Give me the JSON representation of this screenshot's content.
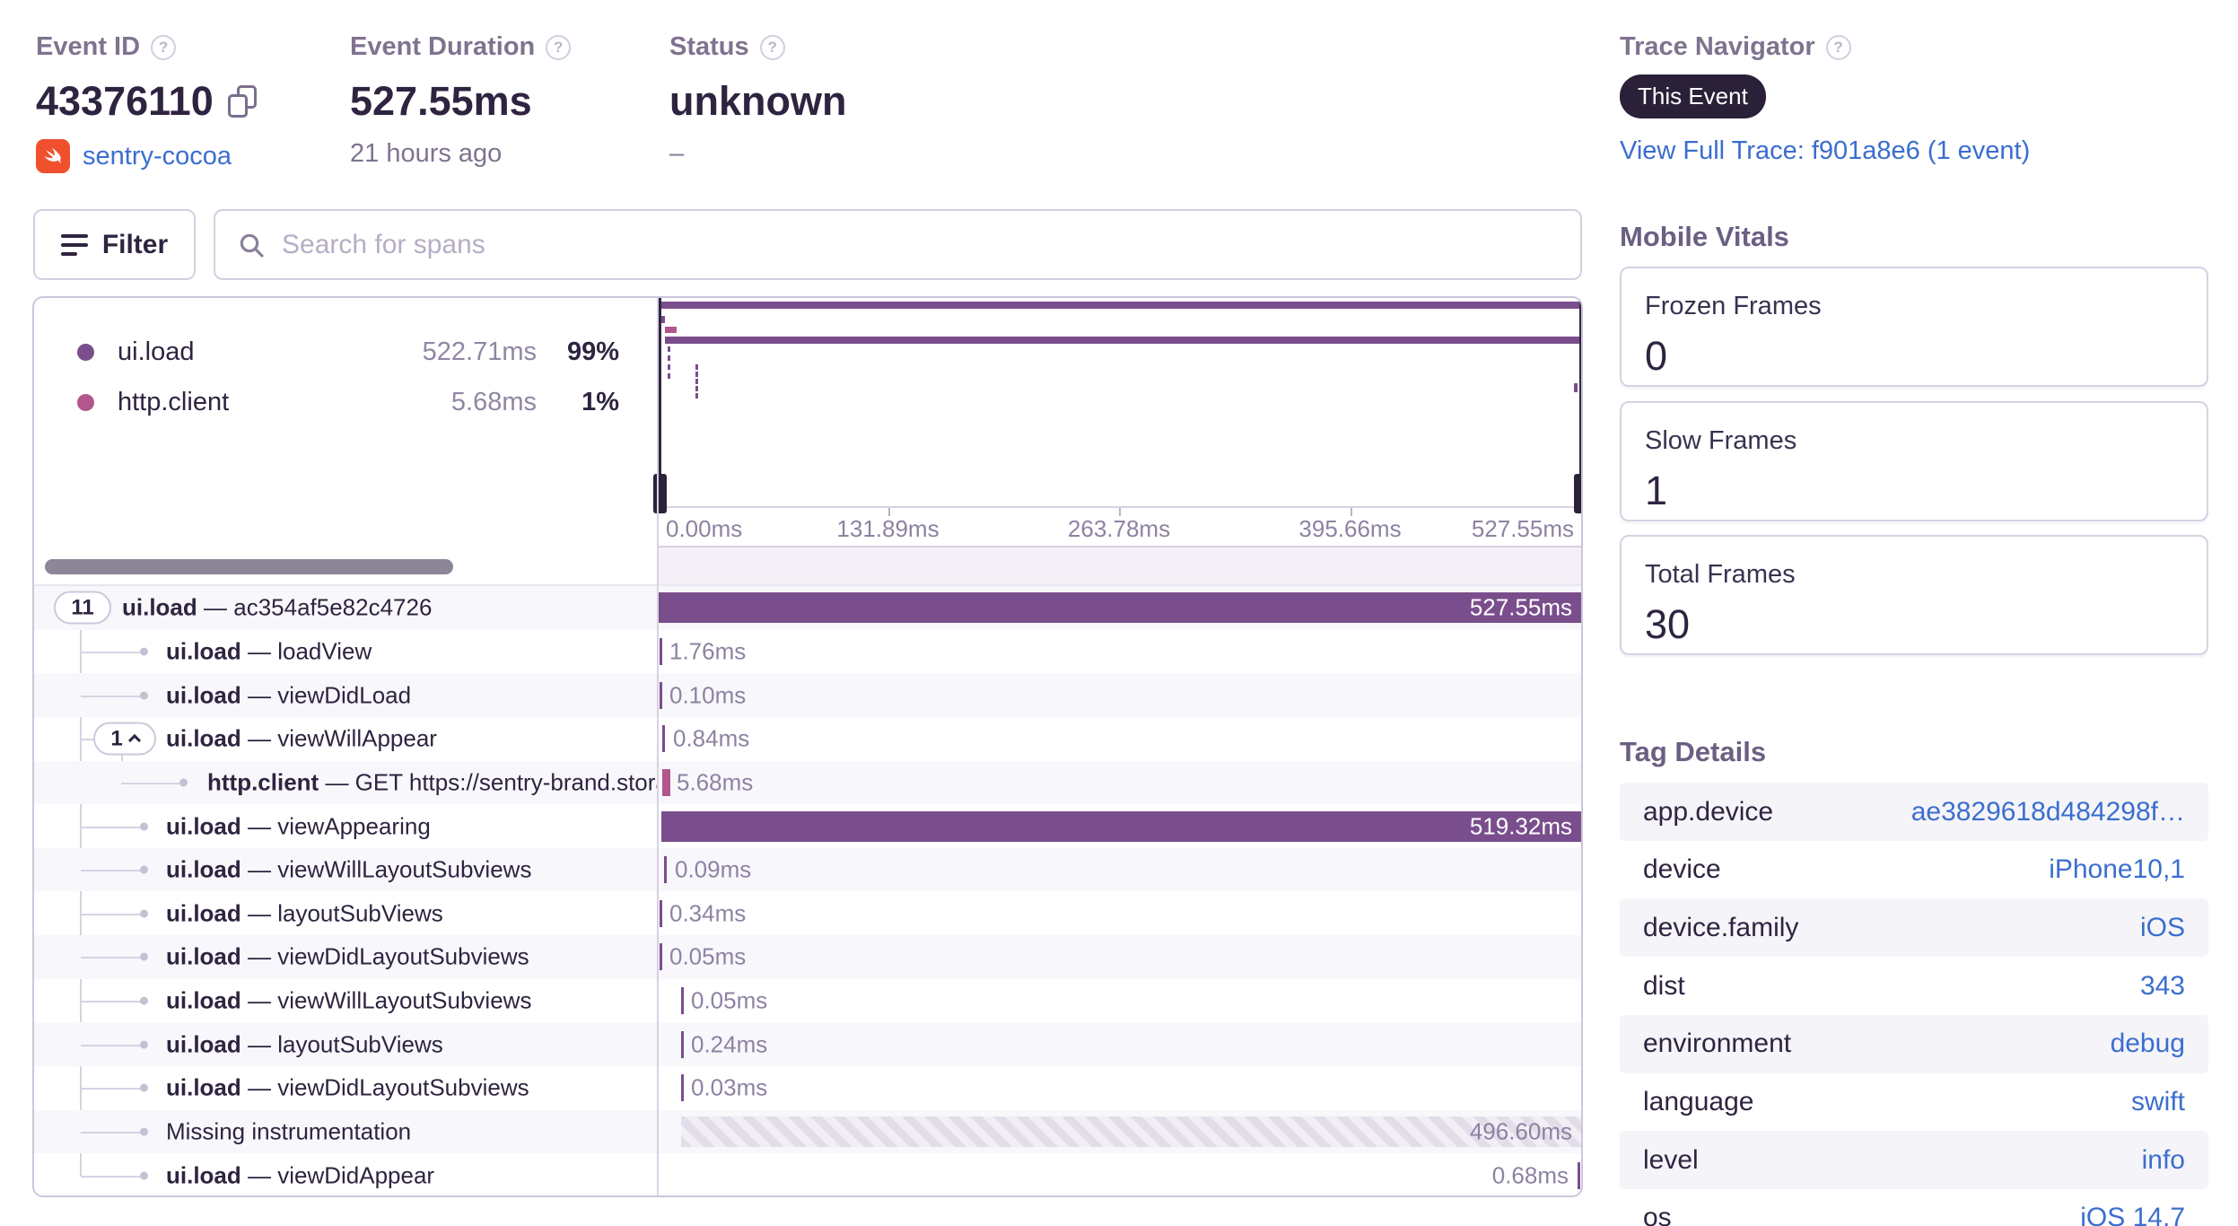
{
  "header": {
    "event_id": {
      "label": "Event ID",
      "value": "43376110",
      "project": "sentry-cocoa"
    },
    "event_duration": {
      "label": "Event Duration",
      "value": "527.55ms",
      "age": "21 hours ago"
    },
    "status": {
      "label": "Status",
      "value": "unknown",
      "subtext": "–"
    },
    "trace_navigator": {
      "label": "Trace Navigator",
      "badge": "This Event",
      "link": "View Full Trace: f901a8e6 (1 event)"
    }
  },
  "toolbar": {
    "filter_label": "Filter",
    "search_placeholder": "Search for spans"
  },
  "legend": {
    "items": [
      {
        "op": "ui.load",
        "duration": "522.71ms",
        "percent": "99%",
        "color": "#7a4e8c"
      },
      {
        "op": "http.client",
        "duration": "5.68ms",
        "percent": "1%",
        "color": "#b2568e"
      }
    ]
  },
  "minimap": {
    "axis_ticks": [
      "0.00ms",
      "131.89ms",
      "263.78ms",
      "395.66ms",
      "527.55ms"
    ]
  },
  "spans": {
    "rows": [
      {
        "pill": "11",
        "op": "ui.load",
        "desc": "ac354af5e82c4726",
        "duration": "527.55ms"
      },
      {
        "op": "ui.load",
        "desc": "loadView",
        "duration": "1.76ms"
      },
      {
        "op": "ui.load",
        "desc": "viewDidLoad",
        "duration": "0.10ms"
      },
      {
        "pill": "1",
        "op": "ui.load",
        "desc": "viewWillAppear",
        "duration": "0.84ms"
      },
      {
        "op": "http.client",
        "desc": "GET https://sentry-brand.stora",
        "duration": "5.68ms"
      },
      {
        "op": "ui.load",
        "desc": "viewAppearing",
        "duration": "519.32ms"
      },
      {
        "op": "ui.load",
        "desc": "viewWillLayoutSubviews",
        "duration": "0.09ms"
      },
      {
        "op": "ui.load",
        "desc": "layoutSubViews",
        "duration": "0.34ms"
      },
      {
        "op": "ui.load",
        "desc": "viewDidLayoutSubviews",
        "duration": "0.05ms"
      },
      {
        "op": "ui.load",
        "desc": "viewWillLayoutSubviews",
        "duration": "0.05ms"
      },
      {
        "op": "ui.load",
        "desc": "layoutSubViews",
        "duration": "0.24ms"
      },
      {
        "op": "ui.load",
        "desc": "viewDidLayoutSubviews",
        "duration": "0.03ms"
      },
      {
        "label": "Missing instrumentation",
        "duration": "496.60ms"
      },
      {
        "op": "ui.load",
        "desc": "viewDidAppear",
        "duration": "0.68ms"
      }
    ]
  },
  "mobile_vitals": {
    "title": "Mobile Vitals",
    "cards": [
      {
        "label": "Frozen Frames",
        "value": "0"
      },
      {
        "label": "Slow Frames",
        "value": "1"
      },
      {
        "label": "Total Frames",
        "value": "30"
      }
    ]
  },
  "tag_details": {
    "title": "Tag Details",
    "rows": [
      {
        "key": "app.device",
        "value": "ae3829618d484298f…"
      },
      {
        "key": "device",
        "value": "iPhone10,1"
      },
      {
        "key": "device.family",
        "value": "iOS"
      },
      {
        "key": "dist",
        "value": "343"
      },
      {
        "key": "environment",
        "value": "debug"
      },
      {
        "key": "language",
        "value": "swift"
      },
      {
        "key": "level",
        "value": "info"
      },
      {
        "key": "os",
        "value": "iOS 14.7"
      }
    ]
  },
  "colors": {
    "purple": "#7a4e8c",
    "pink": "#b2568e",
    "link_blue": "#3b6ecf",
    "badge_bg": "#2a2038"
  }
}
